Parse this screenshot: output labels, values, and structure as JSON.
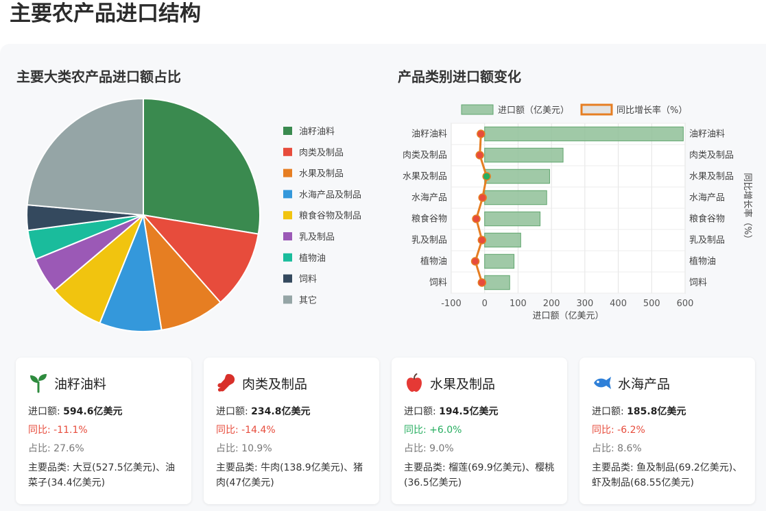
{
  "page": {
    "title": "主要农产品进口结构"
  },
  "pie": {
    "title": "主要大类农产品进口额占比",
    "chart_data": {
      "type": "pie",
      "categories": [
        "油籽油料",
        "肉类及制品",
        "水果及制品",
        "水海产品及制品",
        "粮食谷物及制品",
        "乳及制品",
        "植物油",
        "饲料",
        "其它"
      ],
      "values": [
        27.6,
        10.9,
        9.0,
        8.6,
        7.7,
        5.0,
        4.1,
        3.5,
        23.6
      ],
      "colors": [
        "#3a8a4f",
        "#e74c3c",
        "#e67e22",
        "#3498db",
        "#f1c40f",
        "#9b59b6",
        "#1abc9c",
        "#34495e",
        "#95a5a6"
      ],
      "legend_position": "right"
    }
  },
  "bar": {
    "title": "产品类别进口额变化",
    "chart_data": {
      "type": "bar",
      "orientation": "horizontal",
      "categories": [
        "油籽油料",
        "肉类及制品",
        "水果及制品",
        "水海产品",
        "粮食谷物",
        "乳及制品",
        "植物油",
        "饲料"
      ],
      "series": [
        {
          "name": "进口额（亿美元）",
          "type": "bar",
          "values": [
            594.6,
            234.8,
            194.5,
            185.8,
            166.0,
            108.0,
            88.0,
            75.0
          ],
          "color": "#8fbf98"
        },
        {
          "name": "同比增长率（%）",
          "type": "line",
          "values": [
            -11.1,
            -14.4,
            6.0,
            -6.2,
            -25.0,
            -8.0,
            -28.0,
            -8.0
          ],
          "color": "#e67e22"
        }
      ],
      "xlabel": "进口额（亿美元）",
      "ylabel_right": "同比增长率（%）",
      "xlim": [
        -100,
        600
      ],
      "xticks": [
        -100,
        0,
        100,
        200,
        300,
        400,
        500,
        600
      ],
      "grid": true,
      "legend_position": "top",
      "point_colors": {
        "negative": "#e74c3c",
        "positive": "#27ae60"
      }
    }
  },
  "cards": [
    {
      "icon": "sprout-icon",
      "title": "油籽油料",
      "amount_label": "进口额: ",
      "amount": "594.6亿美元",
      "yoy": "同比: -11.1%",
      "trend": "neg",
      "share": "占比: 27.6%",
      "main": "主要品类: 大豆(527.5亿美元)、油菜子(34.4亿美元)"
    },
    {
      "icon": "meat-icon",
      "title": "肉类及制品",
      "amount_label": "进口额: ",
      "amount": "234.8亿美元",
      "yoy": "同比: -14.4%",
      "trend": "neg",
      "share": "占比: 10.9%",
      "main": "主要品类: 牛肉(138.9亿美元)、猪肉(47亿美元)"
    },
    {
      "icon": "apple-icon",
      "title": "水果及制品",
      "amount_label": "进口额: ",
      "amount": "194.5亿美元",
      "yoy": "同比: +6.0%",
      "trend": "pos",
      "share": "占比: 9.0%",
      "main": "主要品类: 榴莲(69.9亿美元)、樱桃(36.5亿美元)"
    },
    {
      "icon": "fish-icon",
      "title": "水海产品",
      "amount_label": "进口额: ",
      "amount": "185.8亿美元",
      "yoy": "同比: -6.2%",
      "trend": "neg",
      "share": "占比: 8.6%",
      "main": "主要品类: 鱼及制品(69.2亿美元)、虾及制品(68.55亿美元)"
    }
  ]
}
